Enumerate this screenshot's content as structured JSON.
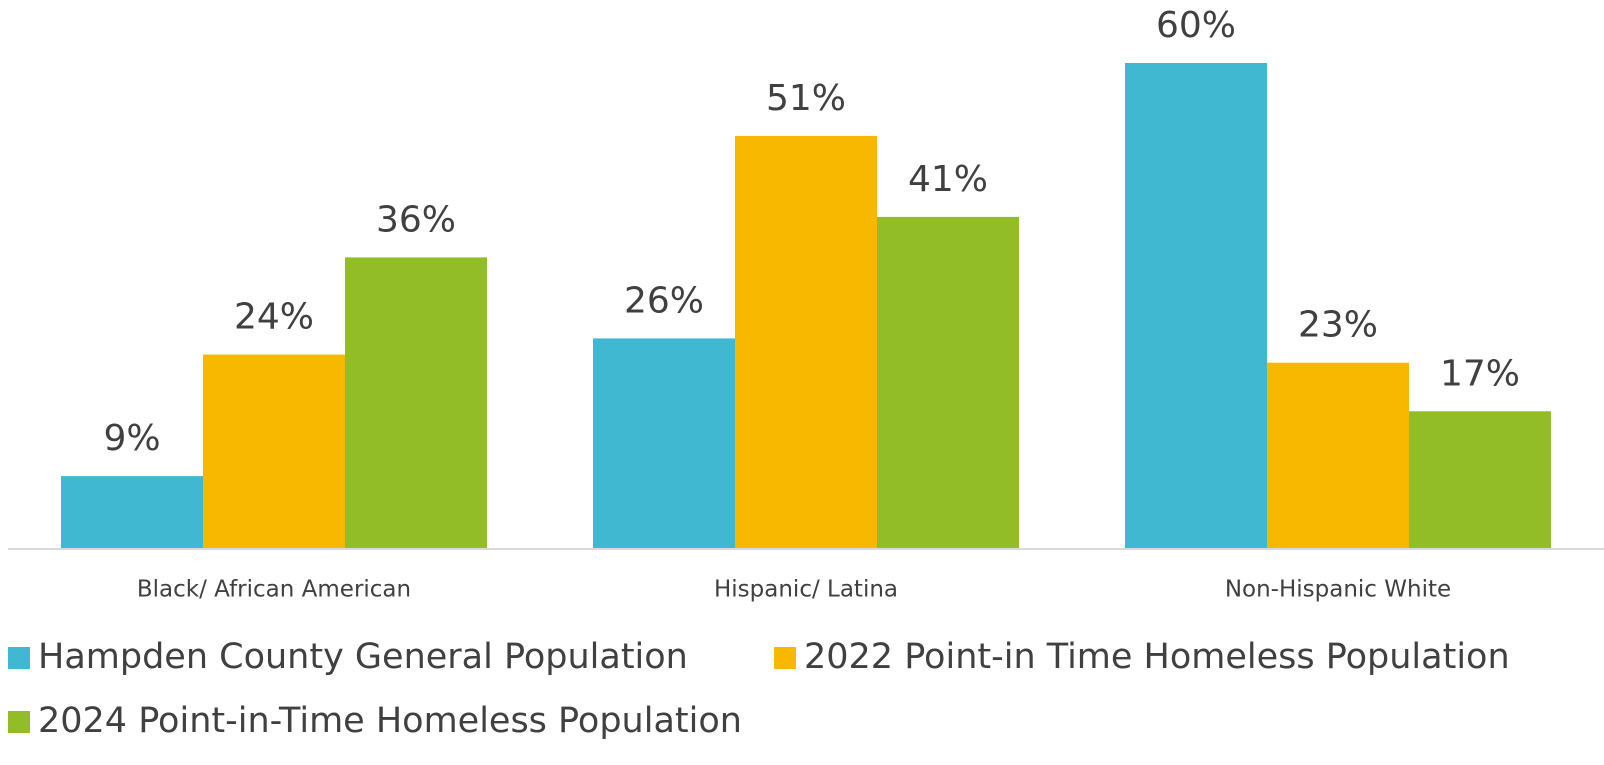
{
  "chart_data": {
    "type": "bar",
    "categories": [
      "Black/ African American",
      "Hispanic/ Latina",
      "Non-Hispanic White"
    ],
    "series": [
      {
        "name": "Hampden County General Population",
        "color": "#41b8d1",
        "values": [
          9,
          26,
          60
        ],
        "value_labels": [
          "9%",
          "26%",
          "60%"
        ]
      },
      {
        "name": "2022 Point-in Time Homeless Population",
        "color": "#f9b800",
        "values": [
          24,
          51,
          23
        ],
        "value_labels": [
          "24%",
          "51%",
          "23%"
        ]
      },
      {
        "name": "2024 Point-in-Time Homeless Population",
        "color": "#92bd26",
        "values": [
          36,
          41,
          17
        ],
        "value_labels": [
          "36%",
          "41%",
          "17%"
        ]
      }
    ]
  }
}
